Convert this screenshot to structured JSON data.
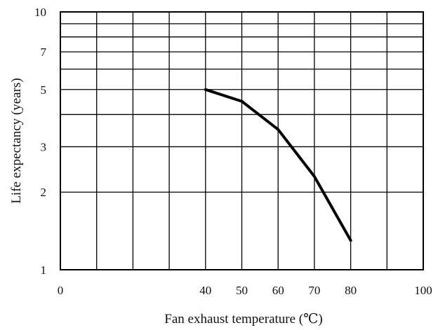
{
  "chart_data": {
    "type": "line",
    "title": "",
    "xlabel": "Fan exhaust temperature (℃)",
    "ylabel": "Life expectancy (years)",
    "xlim": [
      0,
      100
    ],
    "ylim": [
      1,
      10
    ],
    "yscale": "log",
    "grid": true,
    "legend": "none",
    "x_ticks": [
      0,
      40,
      50,
      60,
      70,
      80,
      100
    ],
    "x_tick_labels": [
      "0",
      "40",
      "50",
      "60",
      "70",
      "80",
      "100"
    ],
    "y_ticks": [
      1,
      2,
      3,
      5,
      7,
      10
    ],
    "y_tick_labels": [
      "1",
      "2",
      "3",
      "5",
      "7",
      "10"
    ],
    "x_gridlines": [
      0,
      10,
      20,
      30,
      40,
      50,
      60,
      70,
      80,
      90,
      100
    ],
    "y_gridlines": [
      1,
      2,
      3,
      4,
      5,
      6,
      7,
      8,
      9,
      10
    ],
    "series": [
      {
        "x": [
          40,
          50,
          60,
          70,
          80
        ],
        "y": [
          5.0,
          4.5,
          3.5,
          2.3,
          1.3
        ]
      }
    ],
    "colors": {
      "line": "#000000",
      "grid": "#000000",
      "background": "#ffffff"
    }
  }
}
